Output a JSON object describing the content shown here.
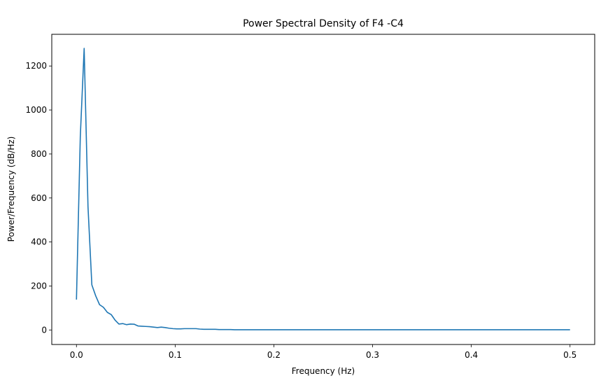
{
  "chart_data": {
    "type": "line",
    "title": "Power Spectral Density of F4 -C4",
    "xlabel": "Frequency (Hz)",
    "ylabel": "Power/Frequency (dB/Hz)",
    "xlim": [
      -0.025,
      0.525
    ],
    "ylim": [
      -66,
      1344
    ],
    "xticks": [
      0.0,
      0.1,
      0.2,
      0.3,
      0.4,
      0.5
    ],
    "xtick_labels": [
      "0.0",
      "0.1",
      "0.2",
      "0.3",
      "0.4",
      "0.5"
    ],
    "yticks": [
      0,
      200,
      400,
      600,
      800,
      1000,
      1200
    ],
    "ytick_labels": [
      "0",
      "200",
      "400",
      "600",
      "800",
      "1000",
      "1200"
    ],
    "grid": false,
    "series": [
      {
        "color": "#1f77b4",
        "x": [
          0.0,
          0.0039,
          0.0078,
          0.0117,
          0.0156,
          0.0195,
          0.0234,
          0.0273,
          0.0313,
          0.0352,
          0.0391,
          0.043,
          0.0469,
          0.0508,
          0.0547,
          0.0586,
          0.0625,
          0.0664,
          0.0703,
          0.0742,
          0.0781,
          0.082,
          0.0859,
          0.0898,
          0.0938,
          0.0977,
          0.1016,
          0.1055,
          0.1094,
          0.1133,
          0.1172,
          0.1211,
          0.125,
          0.1289,
          0.1328,
          0.1367,
          0.1406,
          0.1445,
          0.1484,
          0.1523,
          0.1563,
          0.1602,
          0.1641,
          0.168,
          0.1719,
          0.1758,
          0.18,
          0.2,
          0.25,
          0.3,
          0.35,
          0.4,
          0.45,
          0.5
        ],
        "y": [
          138,
          880,
          1280,
          560,
          205,
          155,
          115,
          103,
          80,
          70,
          45,
          27,
          29,
          24,
          27,
          26,
          18,
          17,
          16,
          15,
          13,
          11,
          13,
          11,
          8,
          6,
          5,
          5,
          6,
          6,
          6,
          6,
          4,
          3,
          3,
          3,
          3,
          2,
          2,
          2,
          2,
          1,
          1,
          1,
          1,
          1,
          1,
          1,
          1,
          1,
          1,
          1,
          1,
          1
        ]
      }
    ]
  }
}
